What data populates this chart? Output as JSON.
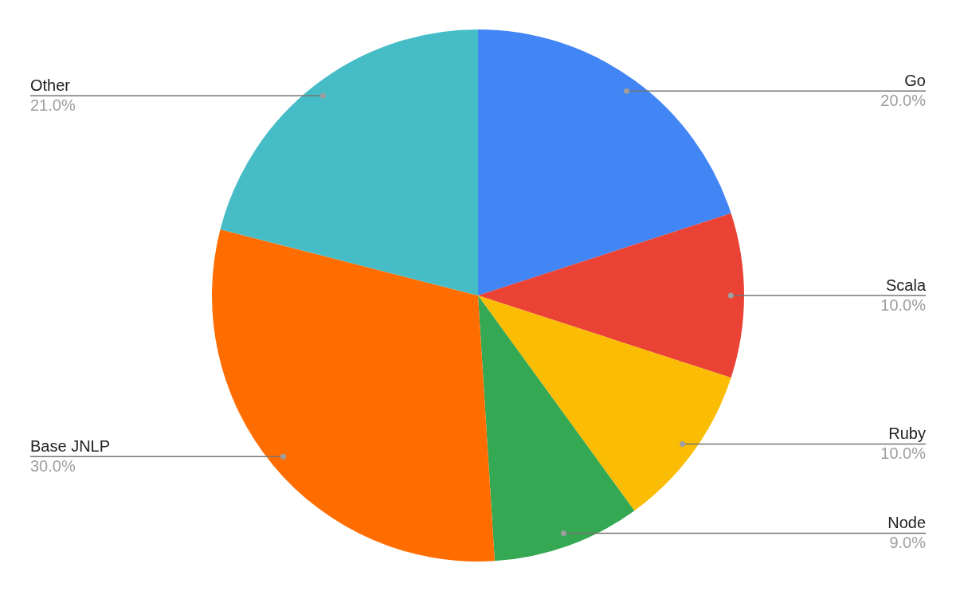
{
  "chart_data": {
    "type": "pie",
    "categories": [
      "Go",
      "Scala",
      "Ruby",
      "Node",
      "Base JNLP",
      "Other"
    ],
    "values": [
      20,
      10,
      10,
      9,
      30,
      21
    ],
    "value_labels": [
      "20.0%",
      "10.0%",
      "10.0%",
      "9.0%",
      "30.0%",
      "21.0%"
    ],
    "colors": [
      "#4285f4",
      "#ea4335",
      "#fbbc04",
      "#34a853",
      "#ff6d01",
      "#46bdc6"
    ]
  }
}
